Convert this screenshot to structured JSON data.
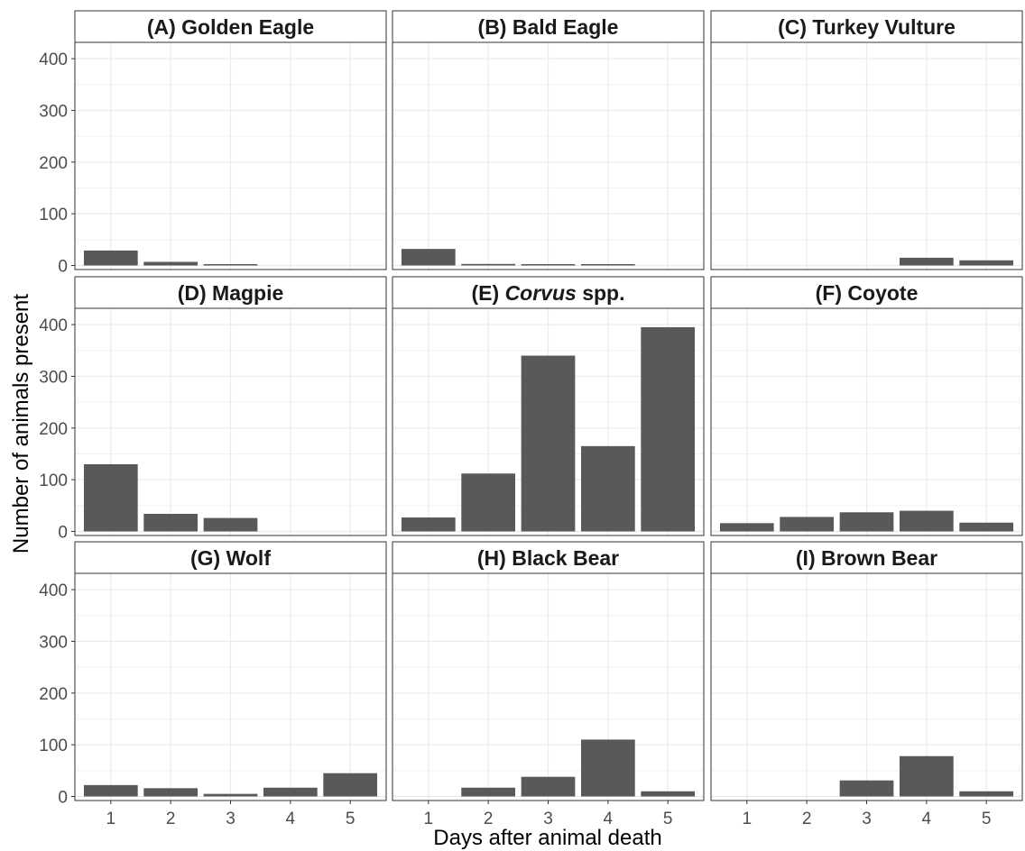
{
  "chart_data": {
    "type": "bar",
    "layout": "facet-grid 3x3",
    "xlabel": "Days after animal death",
    "ylabel": "Number of animals present",
    "categories": [
      "1",
      "2",
      "3",
      "4",
      "5"
    ],
    "y_ticks": [
      "0",
      "100",
      "200",
      "300",
      "400"
    ],
    "ylim": [
      0,
      415
    ],
    "grid": true,
    "bar_color": "#595959",
    "strip_color": "#ffffff",
    "panels": [
      {
        "prefix": "(A) ",
        "name": "Golden Eagle",
        "suffix": "",
        "name_italic": false,
        "values": [
          29,
          7,
          2,
          0,
          0
        ]
      },
      {
        "prefix": "(B) ",
        "name": "Bald Eagle",
        "suffix": "",
        "name_italic": false,
        "values": [
          32,
          3,
          2,
          2,
          0
        ]
      },
      {
        "prefix": "(C) ",
        "name": "Turkey Vulture",
        "suffix": "",
        "name_italic": false,
        "values": [
          0,
          0,
          0,
          15,
          10
        ]
      },
      {
        "prefix": "(D) ",
        "name": "Magpie",
        "suffix": "",
        "name_italic": false,
        "values": [
          130,
          34,
          26,
          0,
          0
        ]
      },
      {
        "prefix": "(E) ",
        "name": "Corvus",
        "suffix": " spp.",
        "name_italic": true,
        "values": [
          27,
          112,
          340,
          165,
          395
        ]
      },
      {
        "prefix": "(F) ",
        "name": "Coyote",
        "suffix": "",
        "name_italic": false,
        "values": [
          16,
          28,
          37,
          40,
          17
        ]
      },
      {
        "prefix": "(G) ",
        "name": "Wolf",
        "suffix": "",
        "name_italic": false,
        "values": [
          22,
          16,
          5,
          17,
          45
        ]
      },
      {
        "prefix": "(H) ",
        "name": "Black Bear",
        "suffix": "",
        "name_italic": false,
        "values": [
          0,
          17,
          38,
          110,
          10
        ]
      },
      {
        "prefix": "(I) ",
        "name": "Brown Bear",
        "suffix": "",
        "name_italic": false,
        "values": [
          0,
          0,
          31,
          78,
          10
        ]
      }
    ]
  }
}
